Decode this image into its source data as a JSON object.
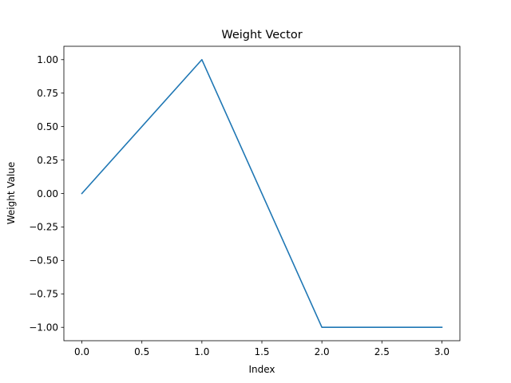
{
  "chart_data": {
    "type": "line",
    "title": "Weight Vector",
    "xlabel": "Index",
    "ylabel": "Weight Value",
    "x": [
      0,
      1,
      2,
      3
    ],
    "series": [
      {
        "values": [
          0,
          1,
          -1,
          -1
        ],
        "color": "#1f77b4"
      }
    ],
    "xlim": [
      -0.15,
      3.15
    ],
    "ylim": [
      -1.1,
      1.1
    ],
    "xticks": [
      0.0,
      0.5,
      1.0,
      1.5,
      2.0,
      2.5,
      3.0
    ],
    "xtick_labels": [
      "0.0",
      "0.5",
      "1.0",
      "1.5",
      "2.0",
      "2.5",
      "3.0"
    ],
    "yticks": [
      1.0,
      0.75,
      0.5,
      0.25,
      0.0,
      -0.25,
      -0.5,
      -0.75,
      -1.0
    ],
    "ytick_labels": [
      "1.00",
      "0.75",
      "0.50",
      "0.25",
      "0.00",
      "−0.25",
      "−0.50",
      "−0.75",
      "−1.00"
    ],
    "grid": false,
    "legend": "none"
  }
}
